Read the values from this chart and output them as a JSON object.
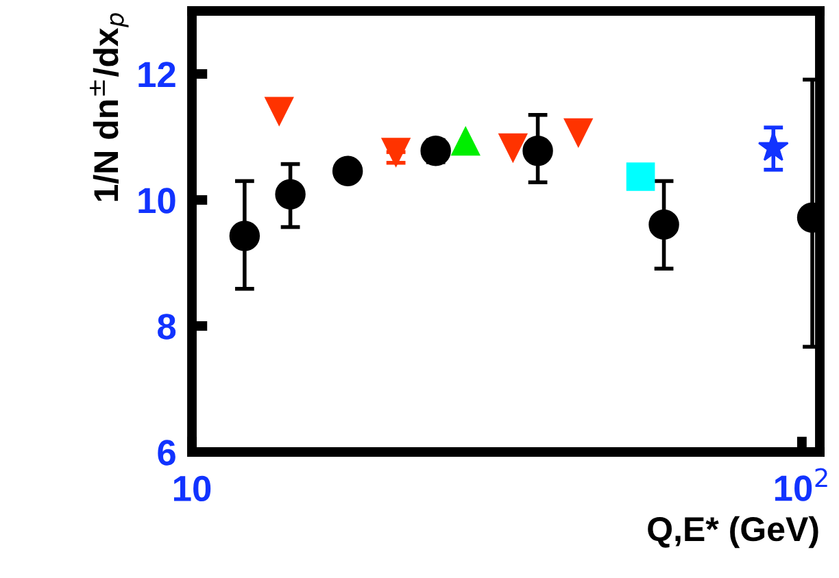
{
  "chart_data": {
    "type": "scatter",
    "xlabel": "Q,E* (GeV)",
    "ylabel": "1/N dn$^{±}$/dx$_{p}$",
    "log": "x",
    "grid": false,
    "legend": false,
    "xlim": [
      10,
      107
    ],
    "xticks": [
      10,
      {
        "value": 100,
        "label": "10$^{2}$"
      }
    ],
    "ylim": [
      6,
      13
    ],
    "yticks": [
      6,
      8,
      10,
      12
    ],
    "series": [
      {
        "color": "#000000",
        "marker": "circle",
        "x": [
          12.2,
          14.5,
          18.0,
          25.1,
          36.9,
          59.4,
          104
        ],
        "values": [
          9.43,
          10.09,
          10.46,
          10.78,
          10.78,
          9.61,
          9.72
        ],
        "errors": [
          [
            8.59,
            10.3
          ],
          [
            9.57,
            10.57
          ],
          null,
          [
            10.6,
            10.95
          ],
          [
            10.28,
            11.35
          ],
          [
            8.91,
            10.3
          ],
          [
            7.67,
            11.91
          ]
        ]
      },
      {
        "color": "#ff3300",
        "marker": "triangle_down",
        "x": [
          13.9,
          21.6,
          33.6,
          43.0
        ],
        "values": [
          11.41,
          10.76,
          10.83,
          11.07
        ],
        "errors": [
          null,
          [
            10.59,
            10.76
          ],
          null,
          null
        ]
      },
      {
        "color": "#00ee00",
        "marker": "triangle",
        "x": [
          28.1
        ],
        "values": [
          10.93
        ]
      },
      {
        "color": "#00ffff",
        "marker": "square",
        "x": [
          54.4
        ],
        "values": [
          10.37
        ]
      },
      {
        "color": "#1133ff",
        "marker": "star",
        "x": [
          89.8
        ],
        "values": [
          10.83
        ],
        "errors": [
          [
            10.48,
            11.15
          ]
        ]
      }
    ]
  }
}
